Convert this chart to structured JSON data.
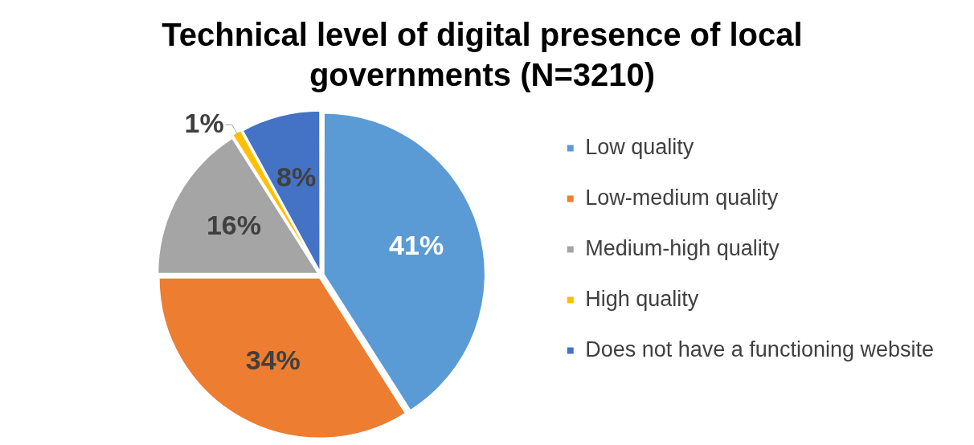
{
  "chart_data": {
    "type": "pie",
    "title": "Technical level of digital presence of local governments (N=3210)",
    "categories": [
      "Low quality",
      "Low-medium quality",
      "Medium-high quality",
      "High quality",
      "Does not have a functioning website"
    ],
    "values": [
      41,
      34,
      16,
      1,
      8
    ],
    "colors": [
      "#5b9bd5",
      "#ed7d31",
      "#a5a5a5",
      "#ffc000",
      "#4472c4"
    ],
    "value_labels": [
      "41%",
      "34%",
      "16%",
      "1%",
      "8%"
    ],
    "legend": "right"
  }
}
